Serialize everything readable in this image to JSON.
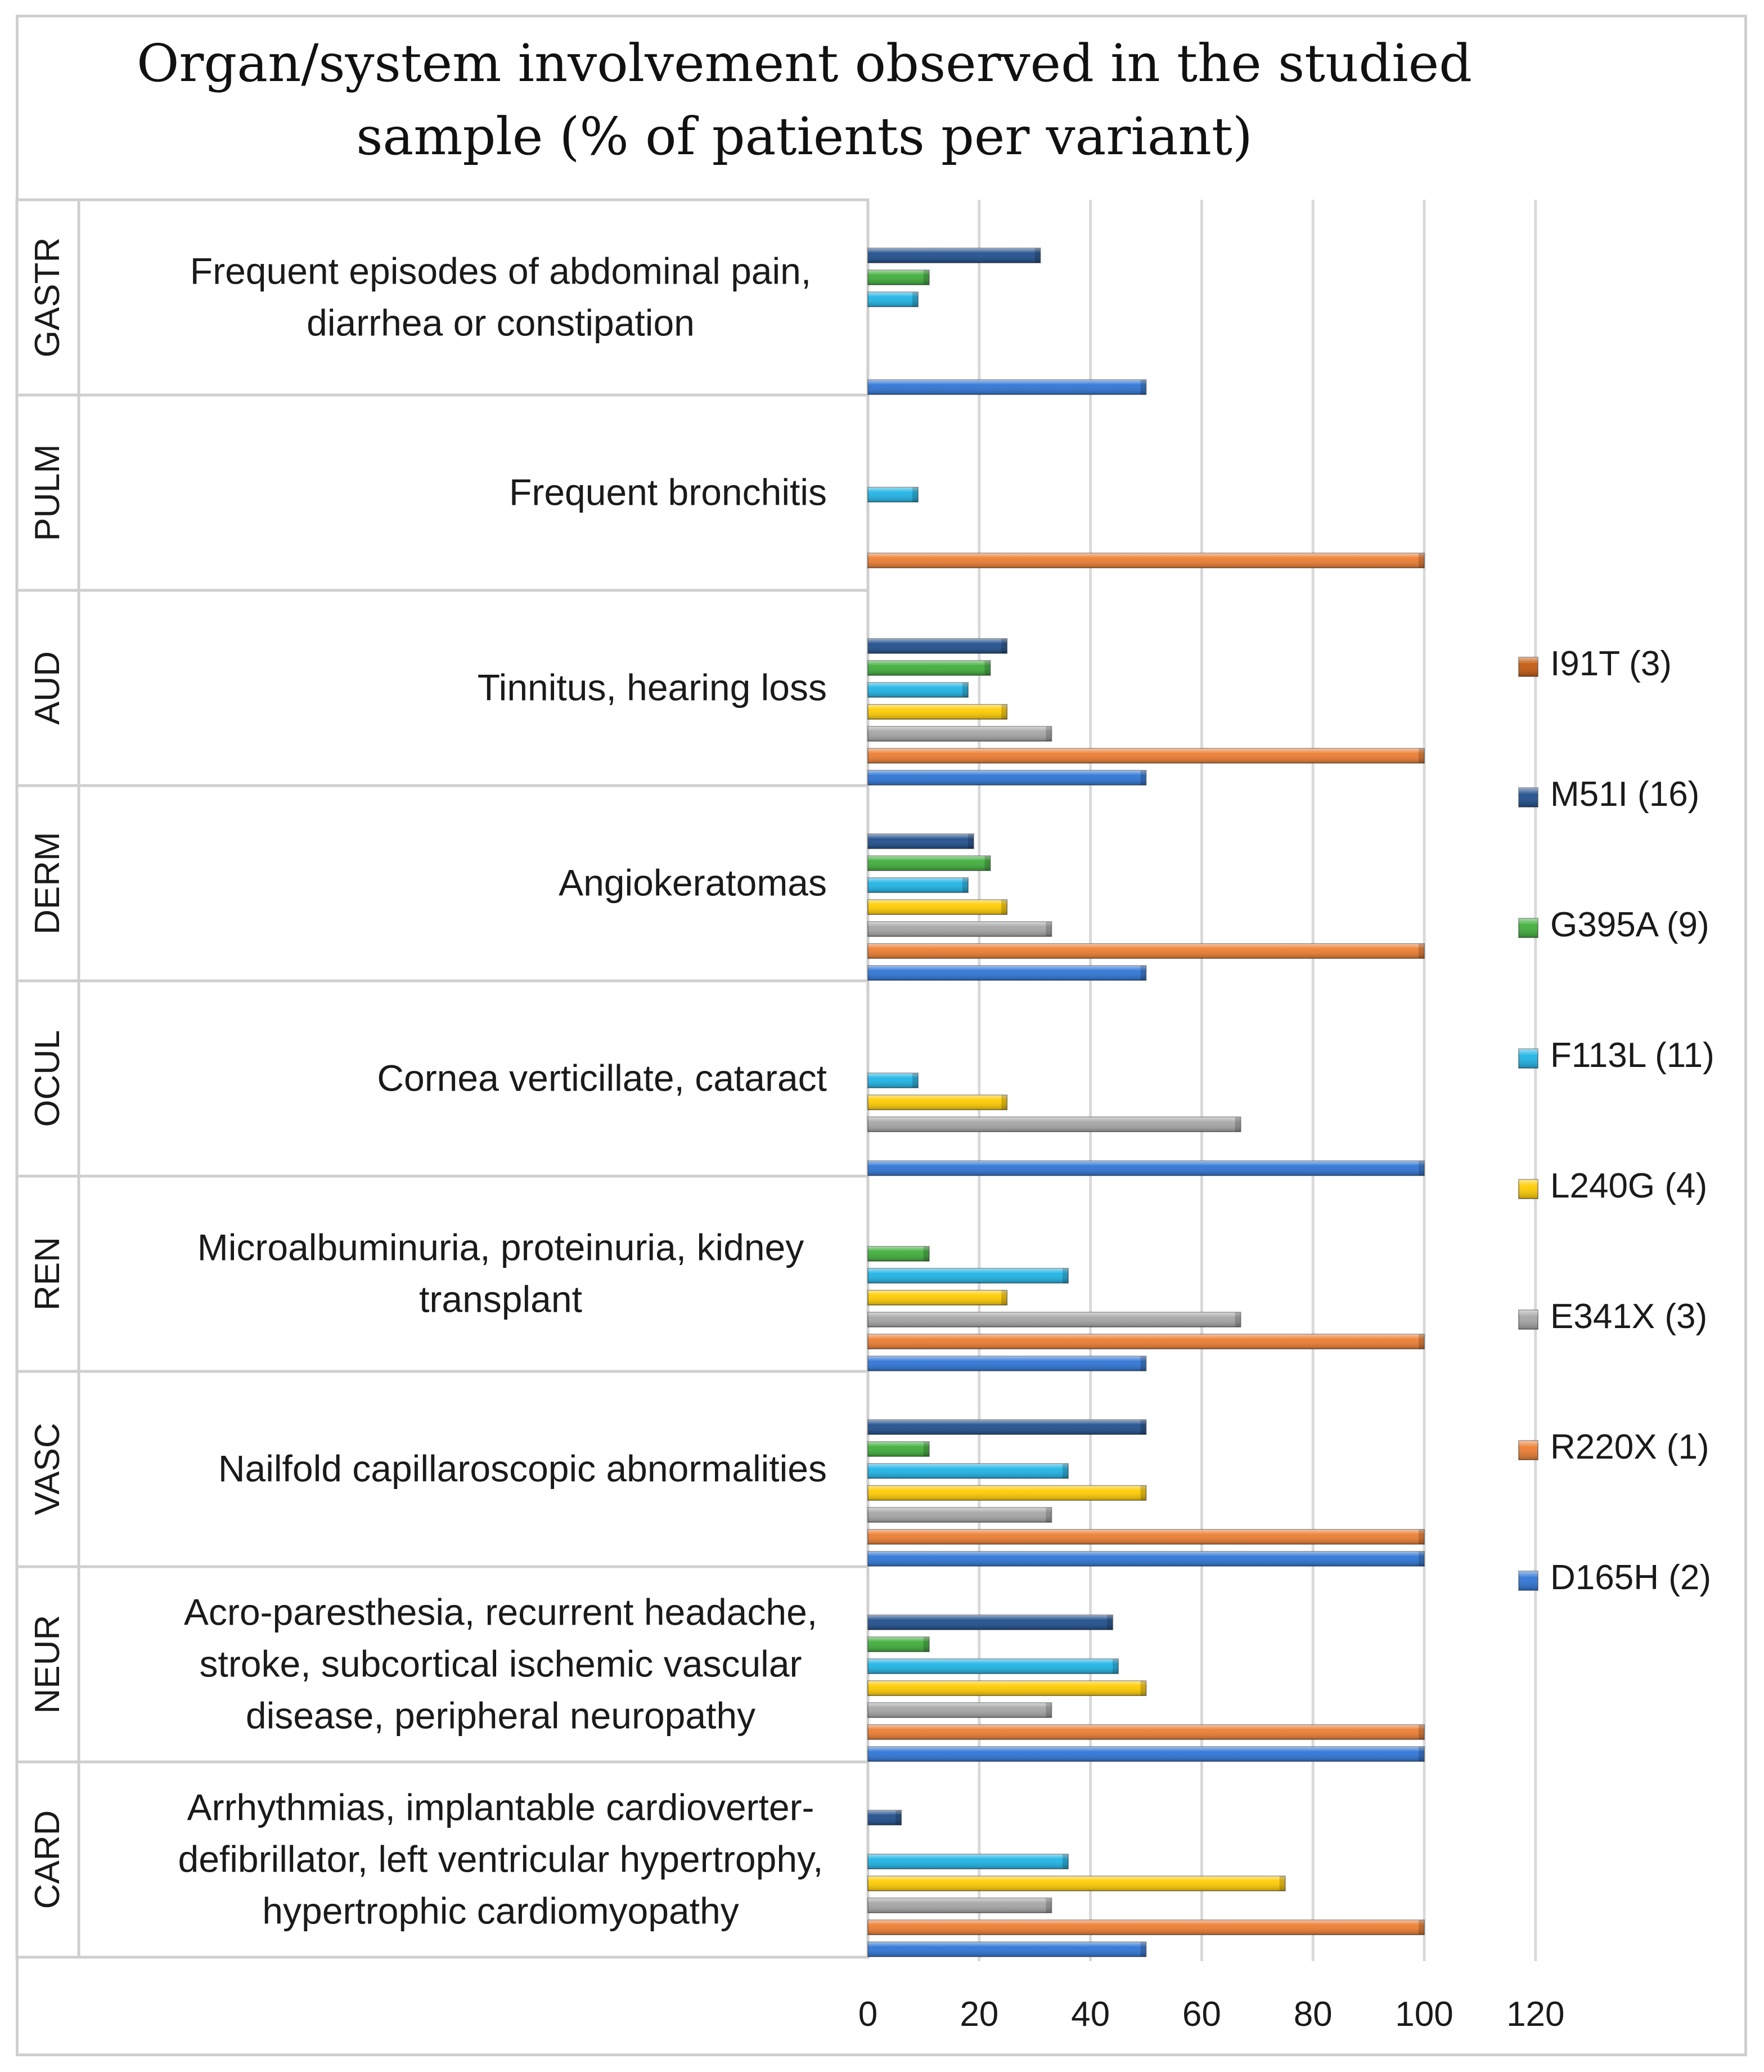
{
  "chart_data": {
    "type": "bar",
    "orientation": "horizontal",
    "title": "Organ/system involvement observed in the studied sample (% of patients per variant)",
    "title_lines": [
      "Organ/system involvement observed in the studied",
      "sample (% of patients per variant)"
    ],
    "xlabel": "",
    "ylabel": "",
    "xlim": [
      0,
      120
    ],
    "xticks": [
      0,
      20,
      40,
      60,
      80,
      100,
      120
    ],
    "grid": true,
    "legend_position": "right",
    "systems": [
      "GASTR",
      "PULM",
      "AUD",
      "DERM",
      "OCUL",
      "REN",
      "VASC",
      "NEUR",
      "CARD"
    ],
    "categories": [
      "Frequent episodes of abdominal pain, diarrhea or constipation",
      "Frequent bronchitis",
      "Tinnitus, hearing loss",
      "Angiokeratomas",
      "Cornea verticillate, cataract",
      "Microalbuminuria, proteinuria, kidney transplant",
      "Nailfold capillaroscopic abnormalities",
      "Acro-paresthesia, recurrent headache, stroke, subcortical ischemic vascular disease, peripheral neuropathy",
      "Arrhythmias, implantable cardioverter-defibrillator, left ventricular hypertrophy, hypertrophic cardiomyopathy"
    ],
    "category_lines": [
      [
        "Frequent episodes of abdominal pain,",
        "diarrhea or constipation"
      ],
      [
        "Frequent bronchitis"
      ],
      [
        "Tinnitus, hearing loss"
      ],
      [
        "Angiokeratomas"
      ],
      [
        "Cornea verticillate, cataract"
      ],
      [
        "Microalbuminuria, proteinuria, kidney",
        "transplant"
      ],
      [
        "Nailfold capillaroscopic abnormalities"
      ],
      [
        "Acro-paresthesia, recurrent headache,",
        "stroke, subcortical ischemic vascular",
        "disease, peripheral neuropathy"
      ],
      [
        "Arrhythmias, implantable cardioverter-",
        "defibrillator, left ventricular hypertrophy,",
        "hypertrophic cardiomyopathy"
      ]
    ],
    "series": [
      {
        "name": "I91T (3)",
        "color": "#c55a11",
        "values": [
          0,
          0,
          0,
          0,
          0,
          0,
          0,
          0,
          0
        ]
      },
      {
        "name": "M51I (16)",
        "color": "#1f4e8c",
        "values": [
          31,
          0,
          25,
          19,
          0,
          0,
          50,
          44,
          6
        ]
      },
      {
        "name": "G395A (9)",
        "color": "#3fae3a",
        "values": [
          11,
          0,
          22,
          22,
          0,
          11,
          11,
          11,
          0
        ]
      },
      {
        "name": "F113L (11)",
        "color": "#1eb4e6",
        "values": [
          9,
          9,
          18,
          18,
          9,
          36,
          36,
          45,
          36
        ]
      },
      {
        "name": "L240G (4)",
        "color": "#ffcc00",
        "values": [
          0,
          0,
          25,
          25,
          25,
          25,
          50,
          50,
          75
        ]
      },
      {
        "name": "E341X (3)",
        "color": "#a6a6a6",
        "values": [
          0,
          0,
          33,
          33,
          67,
          67,
          33,
          33,
          33
        ]
      },
      {
        "name": "R220X (1)",
        "color": "#ed7d31",
        "values": [
          0,
          100,
          100,
          100,
          0,
          100,
          100,
          100,
          100
        ]
      },
      {
        "name": "D165H (2)",
        "color": "#2e75d6",
        "values": [
          50,
          0,
          50,
          50,
          100,
          50,
          100,
          100,
          50
        ]
      }
    ]
  }
}
